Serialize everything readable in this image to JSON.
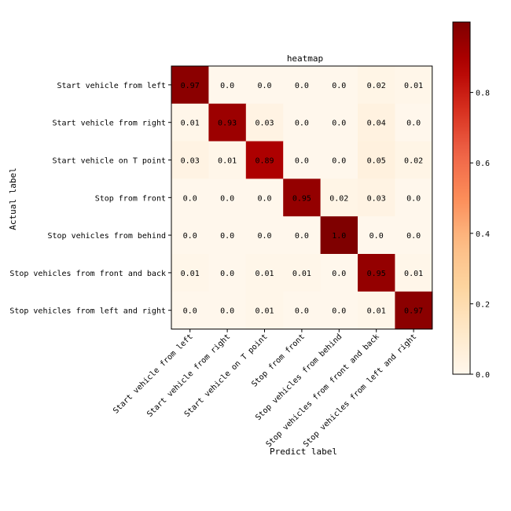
{
  "chart_data": {
    "type": "heatmap",
    "title": "heatmap",
    "xlabel": "Predict label",
    "ylabel": "Actual label",
    "x_categories": [
      "Start vehicle from left",
      "Start vehicle from right",
      "Start vehicle on T point",
      "Stop from front",
      "Stop vehicles from behind",
      "Stop vehicles from front and back",
      "Stop vehicles from left and right"
    ],
    "y_categories": [
      "Start vehicle from left",
      "Start vehicle from right",
      "Start vehicle on T point",
      "Stop from front",
      "Stop vehicles from behind",
      "Stop vehicles from front and back",
      "Stop vehicles from left and right"
    ],
    "values": [
      [
        0.97,
        0.0,
        0.0,
        0.0,
        0.0,
        0.02,
        0.01
      ],
      [
        0.01,
        0.93,
        0.03,
        0.0,
        0.0,
        0.04,
        0.0
      ],
      [
        0.03,
        0.01,
        0.89,
        0.0,
        0.0,
        0.05,
        0.02
      ],
      [
        0.0,
        0.0,
        0.0,
        0.95,
        0.02,
        0.03,
        0.0
      ],
      [
        0.0,
        0.0,
        0.0,
        0.0,
        1.0,
        0.0,
        0.0
      ],
      [
        0.01,
        0.0,
        0.01,
        0.01,
        0.0,
        0.95,
        0.01
      ],
      [
        0.0,
        0.0,
        0.01,
        0.0,
        0.0,
        0.01,
        0.97
      ]
    ],
    "cell_labels": [
      [
        "0.97",
        "0.0",
        "0.0",
        "0.0",
        "0.0",
        "0.02",
        "0.01"
      ],
      [
        "0.01",
        "0.93",
        "0.03",
        "0.0",
        "0.0",
        "0.04",
        "0.0"
      ],
      [
        "0.03",
        "0.01",
        "0.89",
        "0.0",
        "0.0",
        "0.05",
        "0.02"
      ],
      [
        "0.0",
        "0.0",
        "0.0",
        "0.95",
        "0.02",
        "0.03",
        "0.0"
      ],
      [
        "0.0",
        "0.0",
        "0.0",
        "0.0",
        "1.0",
        "0.0",
        "0.0"
      ],
      [
        "0.01",
        "0.0",
        "0.01",
        "0.01",
        "0.0",
        "0.95",
        "0.01"
      ],
      [
        "0.0",
        "0.0",
        "0.01",
        "0.0",
        "0.0",
        "0.01",
        "0.97"
      ]
    ],
    "colormap": "OrRd",
    "colorbar": {
      "range": [
        0,
        1
      ],
      "ticks": [
        0.0,
        0.2,
        0.4,
        0.6,
        0.8
      ],
      "tick_labels": [
        "0.0",
        "0.2",
        "0.4",
        "0.6",
        "0.8"
      ]
    }
  }
}
